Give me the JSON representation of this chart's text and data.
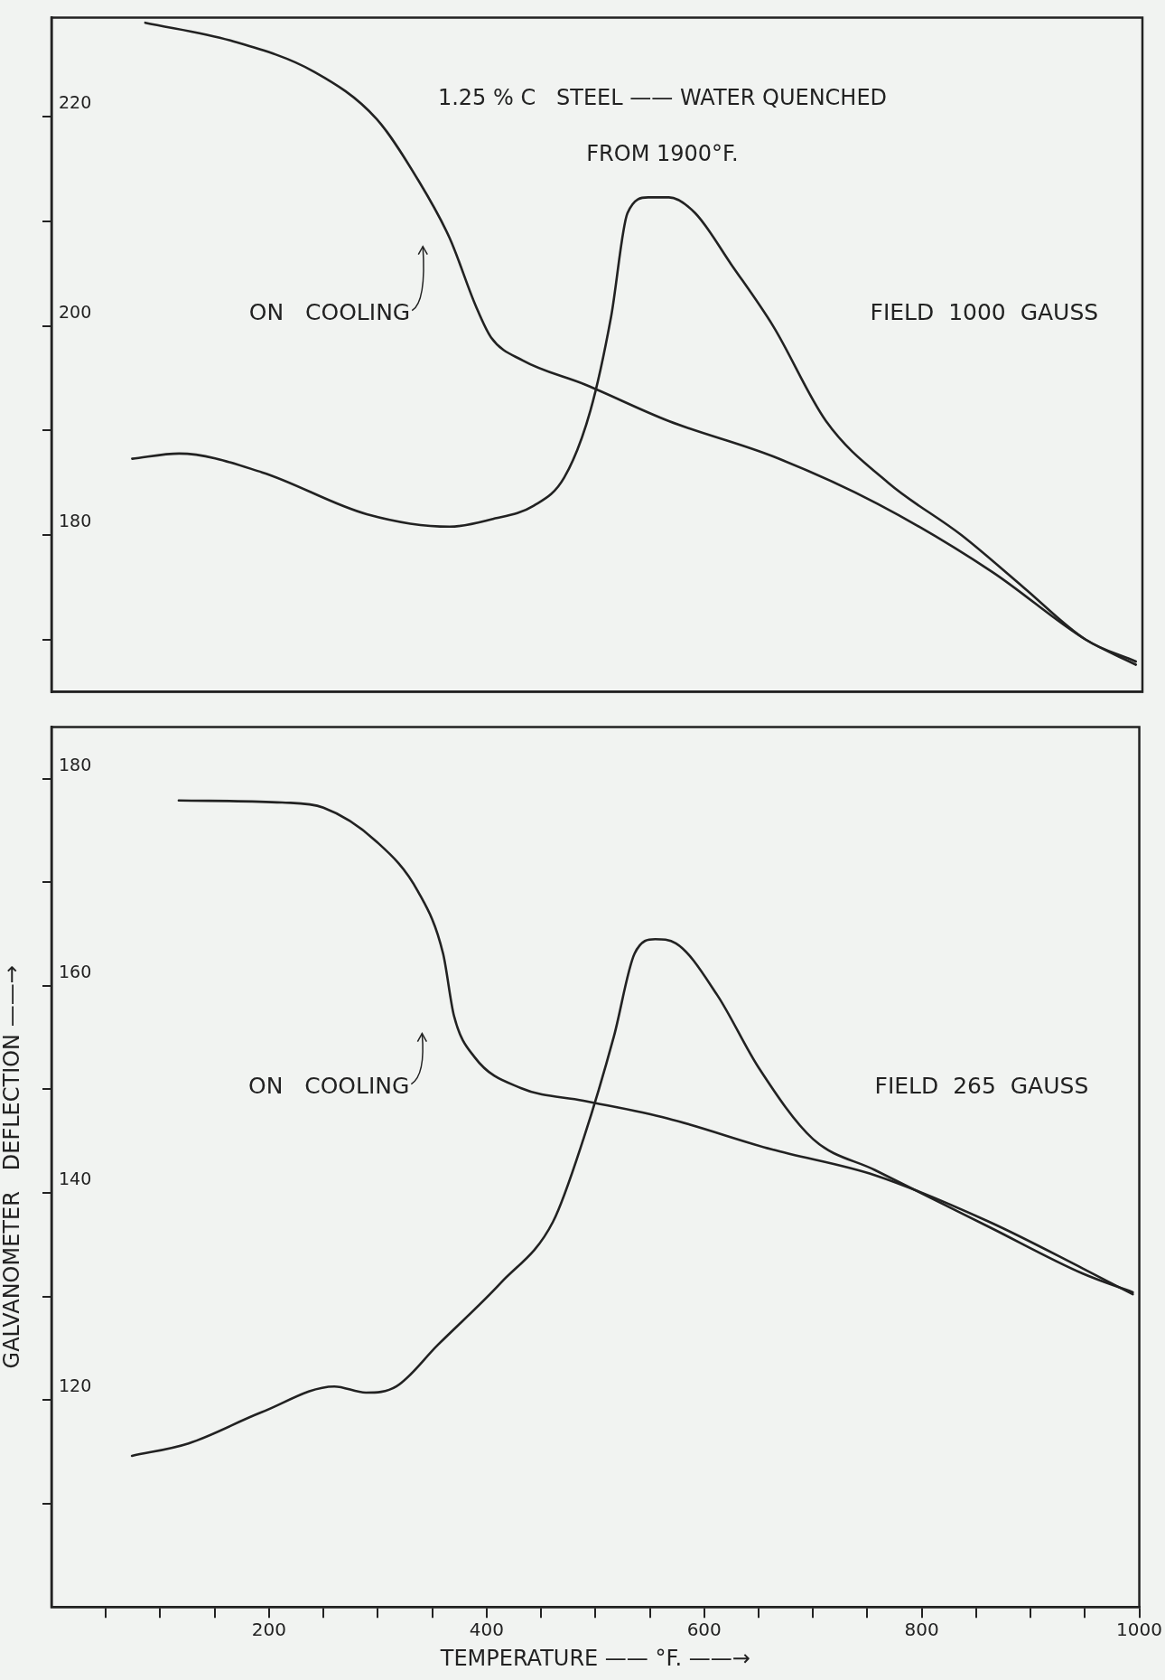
{
  "chart_data": [
    {
      "type": "line",
      "title": "1.25 % C   STEEL —— WATER QUENCHED",
      "subtitle": "FROM 1900°F.",
      "marker": "none",
      "line_style": "solid",
      "tick_labels": "y",
      "xlim": [
        0,
        1000
      ],
      "ylim": [
        165,
        229.5
      ],
      "yticks": [
        {
          "value": 170,
          "label": null
        },
        180,
        {
          "value": 190,
          "label": null
        },
        200,
        {
          "value": 210,
          "label": null
        },
        220
      ],
      "annotations": [
        "ON   COOLING",
        "FIELD  1000  GAUSS"
      ],
      "series": [
        {
          "color": "#222222",
          "x": [
            74,
            117,
            193,
            289,
            365,
            403,
            442,
            470,
            494,
            513,
            528,
            547,
            566,
            590,
            623,
            662,
            710,
            767,
            834,
            891,
            948,
            994
          ],
          "values": [
            187.3,
            187.8,
            186.0,
            182.0,
            180.8,
            181.5,
            182.8,
            185.5,
            191.9,
            200.9,
            210.8,
            212.3,
            212.3,
            210.8,
            205.9,
            199.9,
            190.9,
            185.0,
            180.0,
            175.0,
            170.0,
            167.9
          ]
        },
        {
          "color": "#222222",
          "x": [
            86,
            164,
            241,
            298,
            337,
            365,
            389,
            403,
            432,
            489,
            566,
            662,
            757,
            862,
            948,
            994
          ],
          "values": [
            229.0,
            227.3,
            224.3,
            219.8,
            213.8,
            208.4,
            201.9,
            198.9,
            196.7,
            194.4,
            190.9,
            187.5,
            183.0,
            176.5,
            170.0,
            167.6
          ]
        }
      ]
    },
    {
      "type": "line",
      "xlabel": "TEMPERATURE —— °F. ——→",
      "ylabel": "GALVANOMETER   DEFLECTION ——→",
      "marker": "none",
      "line_style": "solid",
      "xlim": [
        0,
        1000
      ],
      "ylim": [
        100,
        185
      ],
      "xticks": [
        {
          "value": 50,
          "label": null
        },
        {
          "value": 100,
          "label": null
        },
        {
          "value": 150,
          "label": null
        },
        200,
        {
          "value": 250,
          "label": null
        },
        {
          "value": 300,
          "label": null
        },
        {
          "value": 350,
          "label": null
        },
        400,
        {
          "value": 450,
          "label": null
        },
        {
          "value": 500,
          "label": null
        },
        {
          "value": 550,
          "label": null
        },
        600,
        {
          "value": 650,
          "label": null
        },
        {
          "value": 700,
          "label": null
        },
        {
          "value": 750,
          "label": null
        },
        800,
        {
          "value": 850,
          "label": null
        },
        {
          "value": 900,
          "label": null
        },
        {
          "value": 950,
          "label": null
        },
        1000
      ],
      "yticks": [
        {
          "value": 110,
          "label": null
        },
        120,
        {
          "value": 130,
          "label": null
        },
        140,
        {
          "value": 150,
          "label": null
        },
        160,
        {
          "value": 170,
          "label": null
        },
        180
      ],
      "annotations": [
        "ON   COOLING",
        "FIELD  265  GAUSS"
      ],
      "series": [
        {
          "color": "#222222",
          "x": [
            117,
            212,
            250,
            298,
            337,
            360,
            370,
            389,
            432,
            489,
            566,
            662,
            757,
            862,
            948,
            994
          ],
          "values": [
            177.9,
            177.7,
            177.2,
            174.0,
            169.1,
            163.1,
            157.1,
            153.1,
            150.1,
            148.9,
            147.2,
            144.2,
            141.7,
            137.2,
            132.7,
            130.2
          ]
        },
        {
          "color": "#222222",
          "x": [
            74,
            126,
            193,
            260,
            289,
            317,
            355,
            413,
            461,
            489,
            517,
            536,
            555,
            574,
            612,
            650,
            700,
            757,
            862,
            948,
            994
          ],
          "values": [
            114.6,
            115.8,
            118.8,
            121.3,
            120.7,
            121.3,
            125.3,
            131.3,
            137.2,
            145.2,
            155.1,
            163.1,
            164.5,
            164.1,
            159.1,
            152.1,
            145.2,
            142.2,
            136.7,
            132.2,
            130.4
          ]
        }
      ]
    }
  ]
}
